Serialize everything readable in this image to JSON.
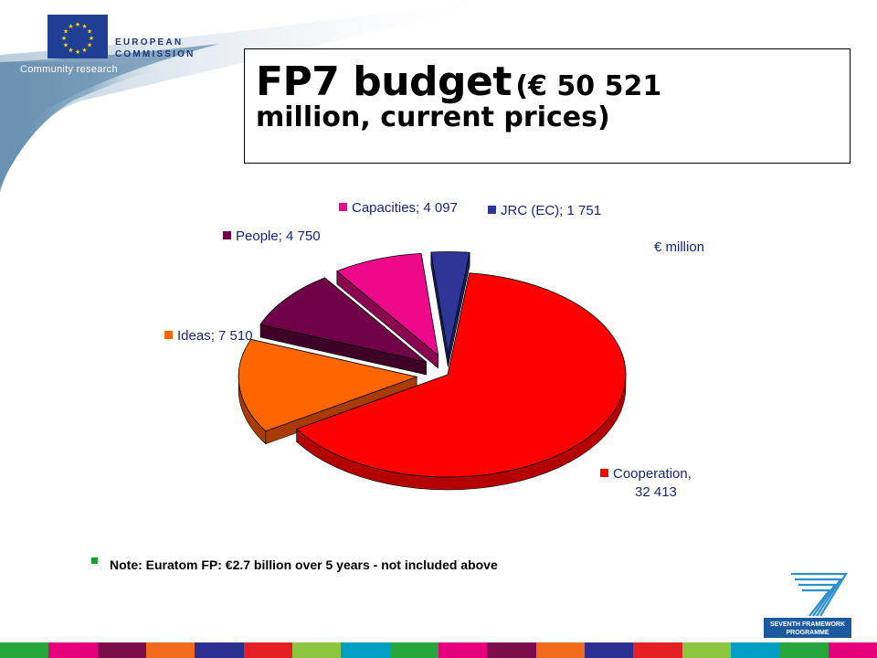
{
  "header": {
    "org_line1": "EUROPEAN",
    "org_line2": "COMMISSION",
    "subtitle": "Community research"
  },
  "title": {
    "main": "FP7 budget",
    "sub_line1": "(€ 50 521",
    "sub_line2": "million, current prices)"
  },
  "unit_label": "€ million",
  "chart_data": {
    "type": "pie",
    "slices": [
      {
        "label": "Cooperation",
        "value": 32413,
        "value_text": "32 413",
        "color": "#ff0000",
        "side_color": "#b40000"
      },
      {
        "label": "Ideas",
        "value": 7510,
        "value_text": "7 510",
        "color": "#ff6600",
        "side_color": "#a83c00"
      },
      {
        "label": "People",
        "value": 4750,
        "value_text": "4 750",
        "color": "#700048",
        "side_color": "#3f0028"
      },
      {
        "label": "Capacities",
        "value": 4097,
        "value_text": "4 097",
        "color": "#ec0a8a",
        "side_color": "#8a0550"
      },
      {
        "label": "JRC (EC)",
        "value": 1751,
        "value_text": "1 751",
        "color": "#2e3596",
        "side_color": "#1a1f5a"
      }
    ],
    "labels": {
      "cooperation_line1": "Cooperation,",
      "cooperation_line2": "32 413",
      "ideas": "Ideas; 7 510",
      "people": "People; 4 750",
      "capacities": "Capacities; 4 097",
      "jrc": "JRC (EC); 1 751"
    }
  },
  "note": "Note: Euratom FP: €2.7 billion over 5 years - not included above",
  "footer_stripe_colors": [
    "#26a53b",
    "#e6007e",
    "#7b0e4a",
    "#f26b1d",
    "#2b2f8f",
    "#e31e24",
    "#8cc63f",
    "#009ec3",
    "#26a53b",
    "#e6007e",
    "#7b0e4a",
    "#f26b1d",
    "#2b2f8f",
    "#e31e24",
    "#8cc63f",
    "#009ec3",
    "#26a53b",
    "#e6007e"
  ]
}
